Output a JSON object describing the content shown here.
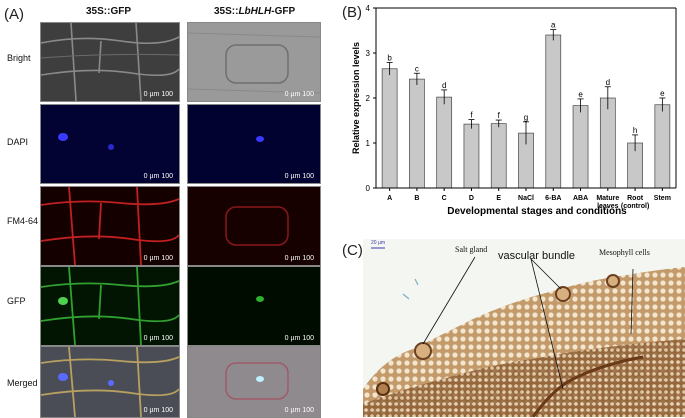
{
  "panelA": {
    "label": "(A)",
    "col_headers": [
      "35S::GFP",
      "35S::",
      "LbHLH",
      "-GFP"
    ],
    "rows": [
      "Bright",
      "DAPI",
      "FM4-64",
      "GFP",
      "Merged"
    ],
    "scale_text": "0   µm   100"
  },
  "panelB": {
    "label": "(B)"
  },
  "panelC": {
    "label": "(C)",
    "scale_small": "20 µm",
    "annotations": [
      "Salt gland",
      "vascular bundle",
      "Mesophyll cells"
    ]
  },
  "chart_data": {
    "type": "bar",
    "categories": [
      "A",
      "B",
      "C",
      "D",
      "E",
      "NaCl",
      "6-BA",
      "ABA",
      "Mature leaves",
      "Root (control)",
      "Stem"
    ],
    "category_lines": [
      [
        "A"
      ],
      [
        "B"
      ],
      [
        "C"
      ],
      [
        "D"
      ],
      [
        "E"
      ],
      [
        "NaCl"
      ],
      [
        "6-BA"
      ],
      [
        "ABA"
      ],
      [
        "Mature",
        "leaves"
      ],
      [
        "Root",
        "(control)"
      ],
      [
        "Stem"
      ]
    ],
    "values": [
      2.65,
      2.42,
      2.02,
      1.42,
      1.43,
      1.22,
      3.4,
      1.83,
      2.0,
      1.0,
      1.85
    ],
    "errors": [
      0.14,
      0.13,
      0.16,
      0.1,
      0.08,
      0.25,
      0.12,
      0.15,
      0.25,
      0.18,
      0.15
    ],
    "letters": [
      "b",
      "c",
      "d",
      "f",
      "f",
      "g",
      "a",
      "e",
      "d",
      "h",
      "e"
    ],
    "xlabel": "Developmental stages and conditions",
    "ylabel": "Relative expression levels",
    "ylim": [
      0,
      4
    ],
    "yticks": [
      "0",
      "1",
      "2",
      "3",
      "4"
    ],
    "bar_color": "#c8c8c8"
  }
}
